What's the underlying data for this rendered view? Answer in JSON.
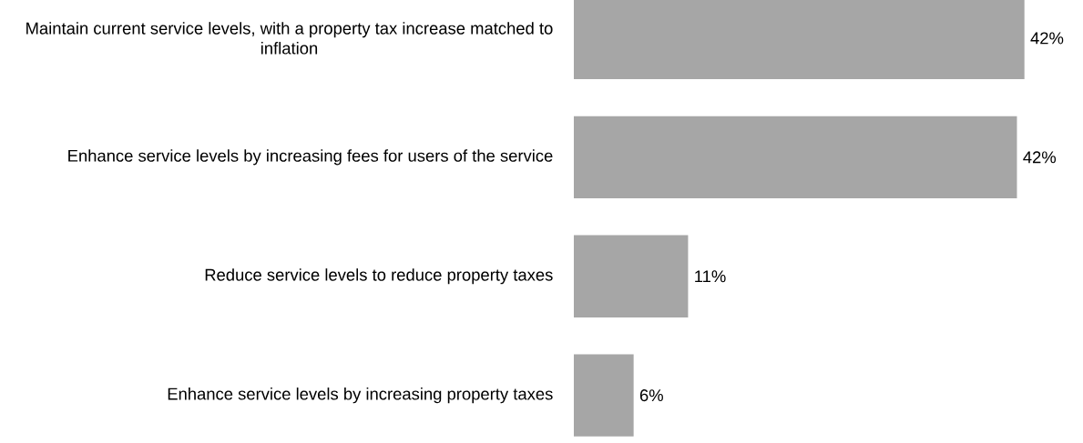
{
  "chart_data": {
    "type": "bar",
    "orientation": "horizontal",
    "categories": [
      "Maintain current service levels, with a property tax increase matched to inflation",
      "Enhance service levels by increasing fees for users of the service",
      "Reduce service levels to reduce property taxes",
      "Enhance service levels by increasing property taxes"
    ],
    "values": [
      42.2,
      41.5,
      10.7,
      5.6
    ],
    "value_labels": [
      "42%",
      "42%",
      "11%",
      "6%"
    ],
    "color": "#a6a6a6",
    "tick_labels": "y"
  }
}
